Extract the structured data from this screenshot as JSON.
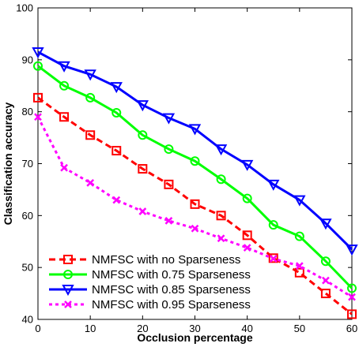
{
  "chart_data": {
    "type": "line",
    "xlabel": "Occlusion percentage",
    "ylabel": "Classification accuracy",
    "xlim": [
      0,
      60
    ],
    "ylim": [
      40,
      100
    ],
    "xticks": [
      0,
      10,
      20,
      30,
      40,
      50,
      60
    ],
    "yticks": [
      40,
      50,
      60,
      70,
      80,
      90,
      100
    ],
    "grid": false,
    "legend_position": "bottom-left",
    "x": [
      0,
      5,
      10,
      15,
      20,
      25,
      30,
      35,
      40,
      45,
      50,
      55,
      60
    ],
    "series": [
      {
        "name": "NMFSC with no Sparseness",
        "color": "#ff0000",
        "line_style": "dashed",
        "marker": "square",
        "values": [
          82.7,
          79.0,
          75.5,
          72.5,
          69.0,
          66.0,
          62.2,
          60.0,
          56.2,
          51.8,
          49.0,
          45.0,
          41.0
        ]
      },
      {
        "name": "NMFSC with 0.75 Sparseness",
        "color": "#00ff00",
        "line_style": "solid",
        "marker": "circle",
        "values": [
          88.8,
          85.0,
          82.7,
          79.8,
          75.5,
          72.8,
          70.5,
          67.0,
          63.3,
          58.2,
          56.0,
          51.2,
          46.0
        ]
      },
      {
        "name": "NMFSC with 0.85 Sparseness",
        "color": "#0000ff",
        "line_style": "solid",
        "marker": "triangle-down",
        "values": [
          91.5,
          88.8,
          87.2,
          84.8,
          81.3,
          78.8,
          76.7,
          72.8,
          69.8,
          66.0,
          63.0,
          58.5,
          53.5
        ]
      },
      {
        "name": "NMFSC with 0.95 Sparseness",
        "color": "#ff00ff",
        "line_style": "dotted",
        "marker": "x",
        "values": [
          79.0,
          69.2,
          66.3,
          63.0,
          60.8,
          59.0,
          57.5,
          55.6,
          53.8,
          51.7,
          50.3,
          47.5,
          44.3
        ]
      }
    ]
  }
}
